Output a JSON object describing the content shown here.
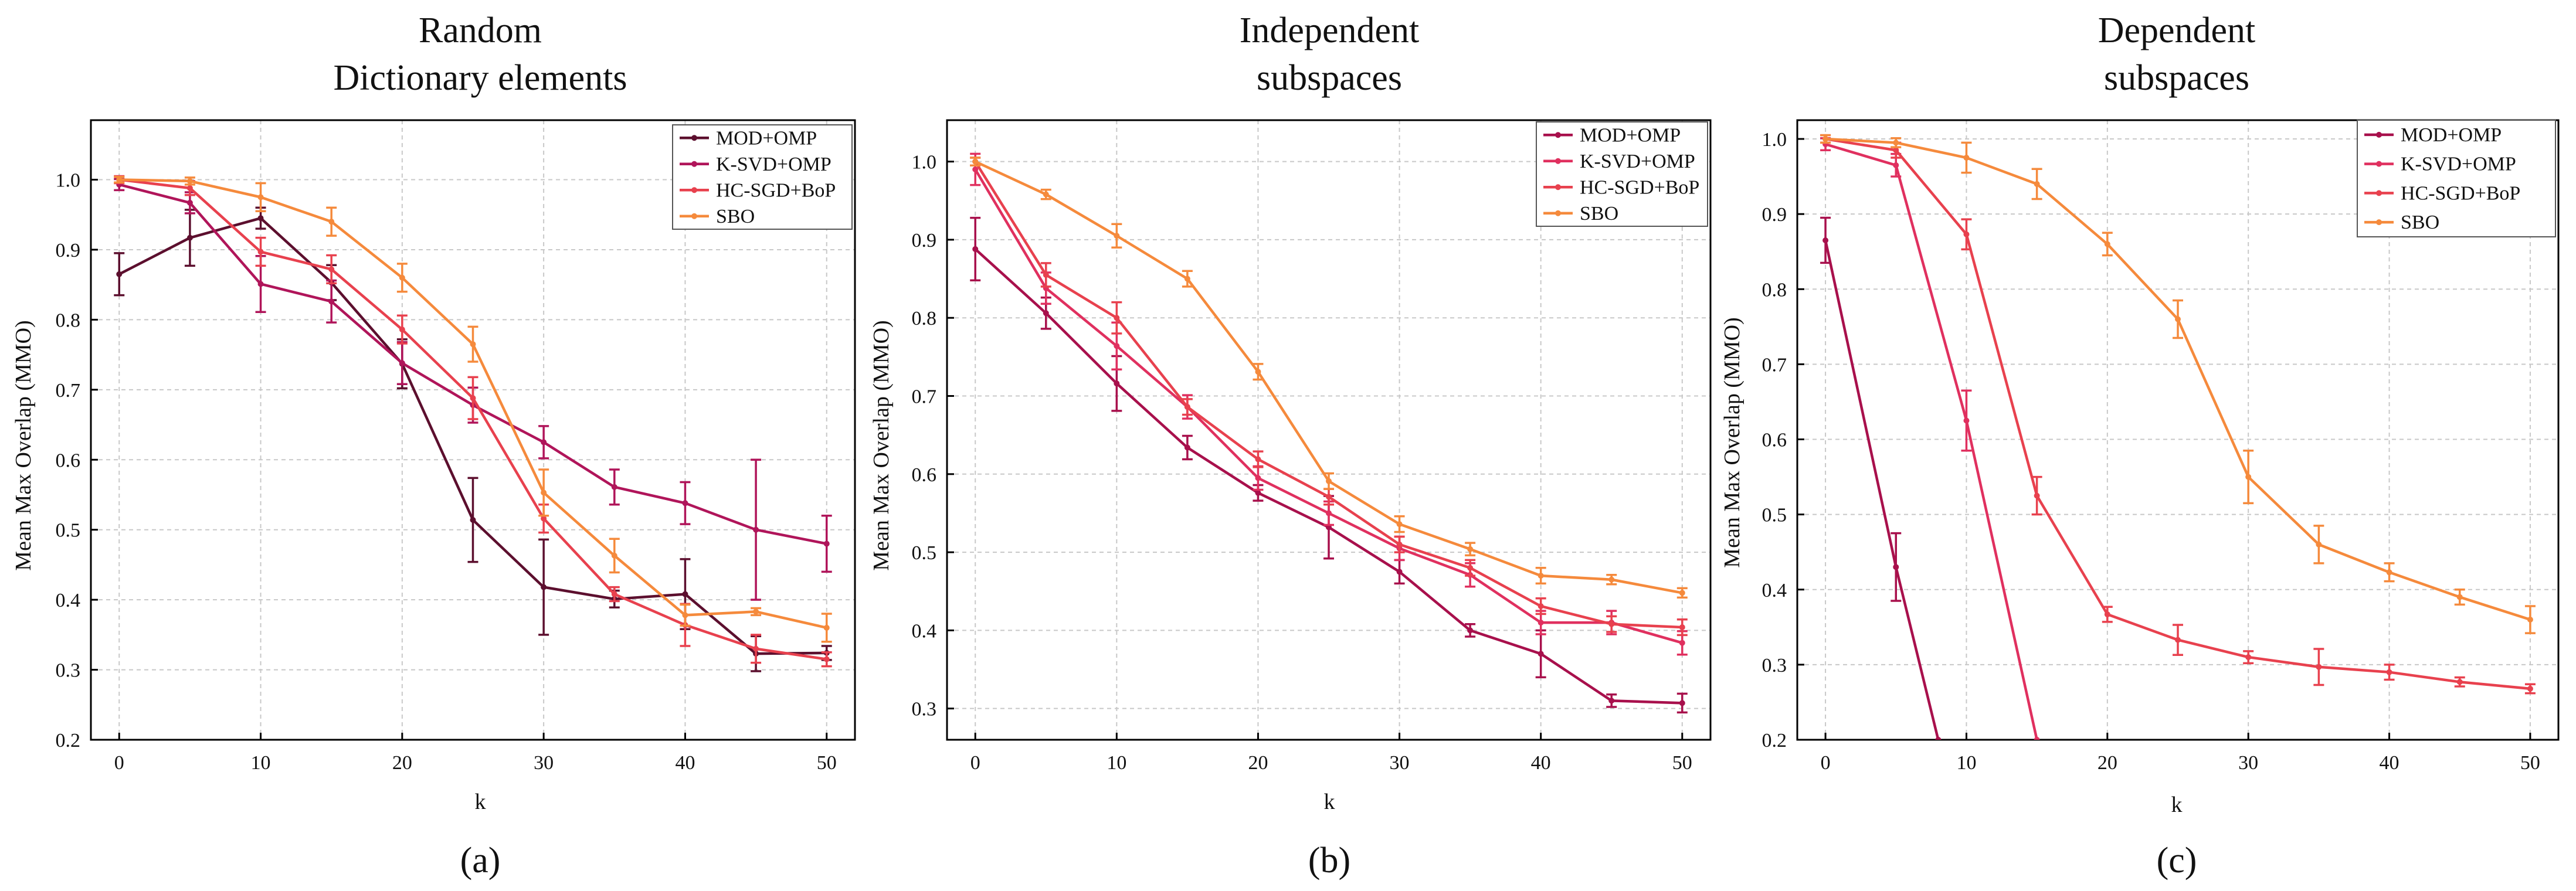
{
  "captions": [
    "(a)",
    "(b)",
    "(c)"
  ],
  "colors": {
    "MOD+OMP": "#5c0f2e",
    "K-SVD+OMP": "#b0155a",
    "HC-SGD+BoP": "#e8414e",
    "SBO": "#f58a3c",
    "MOD+OMP_b": "#a8104c",
    "K-SVD+OMP_b": "#e0305f"
  },
  "chart_data": [
    {
      "type": "line",
      "title": [
        "Random",
        "Dictionary elements"
      ],
      "xlabel": "k",
      "ylabel": "Mean Max Overlap (MMO)",
      "xlim": [
        -2,
        52
      ],
      "ylim": [
        0.2,
        1.085
      ],
      "xticks": [
        0,
        10,
        20,
        30,
        40,
        50
      ],
      "yticks": [
        0.2,
        0.3,
        0.4,
        0.5,
        0.6,
        0.7,
        0.8,
        0.9,
        1.0
      ],
      "ytick_labels": [
        "0.2",
        "0.3",
        "0.4",
        "0.5",
        "0.6",
        "0.7",
        "0.8",
        "0.9",
        "1.0"
      ],
      "grid": true,
      "legend": "top-right",
      "x": [
        0,
        5,
        10,
        15,
        20,
        25,
        30,
        35,
        40,
        45,
        50
      ],
      "series": [
        {
          "name": "MOD+OMP",
          "color_key": "MOD+OMP",
          "values": [
            0.865,
            0.917,
            0.945,
            0.853,
            0.737,
            0.514,
            0.418,
            0.401,
            0.408,
            0.323,
            0.324
          ],
          "errors": [
            0.03,
            0.04,
            0.015,
            0.025,
            0.035,
            0.06,
            0.068,
            0.012,
            0.05,
            0.025,
            0.01
          ]
        },
        {
          "name": "K-SVD+OMP",
          "color_key": "K-SVD+OMP",
          "values": [
            0.993,
            0.967,
            0.851,
            0.826,
            0.738,
            0.678,
            0.625,
            0.561,
            0.538,
            0.5,
            0.48
          ],
          "errors": [
            0.008,
            0.015,
            0.04,
            0.03,
            0.03,
            0.025,
            0.023,
            0.025,
            0.03,
            0.1,
            0.04
          ]
        },
        {
          "name": "HC-SGD+BoP",
          "color_key": "HC-SGD+BoP",
          "values": [
            1.0,
            0.988,
            0.897,
            0.872,
            0.786,
            0.688,
            0.516,
            0.408,
            0.364,
            0.33,
            0.315
          ],
          "errors": [
            0.005,
            0.01,
            0.02,
            0.02,
            0.02,
            0.03,
            0.02,
            0.01,
            0.03,
            0.02,
            0.01
          ]
        },
        {
          "name": "SBO",
          "color_key": "SBO",
          "values": [
            1.0,
            0.998,
            0.975,
            0.94,
            0.86,
            0.765,
            0.553,
            0.463,
            0.378,
            0.383,
            0.36
          ],
          "errors": [
            0.004,
            0.005,
            0.02,
            0.02,
            0.02,
            0.025,
            0.033,
            0.024,
            0.015,
            0.005,
            0.02
          ]
        }
      ]
    },
    {
      "type": "line",
      "title": [
        "Independent",
        "subspaces"
      ],
      "xlabel": "k",
      "ylabel": "Mean Max Overlap (MMO)",
      "xlim": [
        -2,
        52
      ],
      "ylim": [
        0.26,
        1.053
      ],
      "xticks": [
        0,
        10,
        20,
        30,
        40,
        50
      ],
      "yticks": [
        0.3,
        0.4,
        0.5,
        0.6,
        0.7,
        0.8,
        0.9,
        1.0
      ],
      "ytick_labels": [
        "0.3",
        "0.4",
        "0.5",
        "0.6",
        "0.7",
        "0.8",
        "0.9",
        "1.0"
      ],
      "grid": true,
      "legend": "top-right",
      "x": [
        0,
        5,
        10,
        15,
        20,
        25,
        30,
        35,
        40,
        45,
        50
      ],
      "series": [
        {
          "name": "MOD+OMP",
          "color_key": "MOD+OMP_b",
          "values": [
            0.888,
            0.806,
            0.716,
            0.634,
            0.576,
            0.532,
            0.475,
            0.4,
            0.37,
            0.31,
            0.307
          ],
          "errors": [
            0.04,
            0.02,
            0.035,
            0.015,
            0.01,
            0.04,
            0.015,
            0.008,
            0.03,
            0.008,
            0.012
          ]
        },
        {
          "name": "K-SVD+OMP",
          "color_key": "K-SVD+OMP_b",
          "values": [
            0.99,
            0.838,
            0.764,
            0.686,
            0.595,
            0.55,
            0.505,
            0.471,
            0.41,
            0.41,
            0.384
          ],
          "errors": [
            0.02,
            0.02,
            0.03,
            0.015,
            0.015,
            0.015,
            0.015,
            0.015,
            0.015,
            0.015,
            0.015
          ]
        },
        {
          "name": "HC-SGD+BoP",
          "color_key": "HC-SGD+BoP",
          "values": [
            1.0,
            0.855,
            0.8,
            0.686,
            0.619,
            0.571,
            0.51,
            0.48,
            0.431,
            0.408,
            0.404
          ],
          "errors": [
            0.005,
            0.015,
            0.02,
            0.01,
            0.01,
            0.01,
            0.01,
            0.01,
            0.01,
            0.01,
            0.01
          ]
        },
        {
          "name": "SBO",
          "color_key": "SBO",
          "values": [
            1.0,
            0.958,
            0.905,
            0.85,
            0.731,
            0.591,
            0.536,
            0.504,
            0.47,
            0.465,
            0.448
          ],
          "errors": [
            0.005,
            0.006,
            0.015,
            0.01,
            0.01,
            0.01,
            0.01,
            0.008,
            0.01,
            0.006,
            0.006
          ]
        }
      ]
    },
    {
      "type": "line",
      "title": [
        "Dependent",
        "subspaces"
      ],
      "xlabel": "k",
      "ylabel": "Mean Max Overlap (MMO)",
      "xlim": [
        -2,
        52
      ],
      "ylim": [
        0.2,
        1.025
      ],
      "xticks": [
        0,
        10,
        20,
        30,
        40,
        50
      ],
      "yticks": [
        0.2,
        0.3,
        0.4,
        0.5,
        0.6,
        0.7,
        0.8,
        0.9,
        1.0
      ],
      "ytick_labels": [
        "0.2",
        "0.3",
        "0.4",
        "0.5",
        "0.6",
        "0.7",
        "0.8",
        "0.9",
        "1.0"
      ],
      "grid": true,
      "legend": "top-right",
      "x": [
        0,
        5,
        10,
        15,
        20,
        25,
        30,
        35,
        40,
        45,
        50
      ],
      "series": [
        {
          "name": "MOD+OMP",
          "color_key": "MOD+OMP_b",
          "x": [
            0,
            5,
            8
          ],
          "values": [
            0.865,
            0.43,
            0.2
          ],
          "errors": [
            0.03,
            0.045,
            0
          ]
        },
        {
          "name": "K-SVD+OMP",
          "color_key": "K-SVD+OMP_b",
          "x": [
            0,
            5,
            10,
            15
          ],
          "values": [
            0.993,
            0.965,
            0.625,
            0.2
          ],
          "errors": [
            0.008,
            0.015,
            0.04,
            0
          ]
        },
        {
          "name": "HC-SGD+BoP",
          "color_key": "HC-SGD+BoP",
          "values": [
            1.0,
            0.985,
            0.873,
            0.525,
            0.367,
            0.333,
            0.31,
            0.297,
            0.29,
            0.277,
            0.268
          ],
          "errors": [
            0.005,
            0.01,
            0.02,
            0.025,
            0.01,
            0.02,
            0.008,
            0.024,
            0.01,
            0.006,
            0.006
          ]
        },
        {
          "name": "SBO",
          "color_key": "SBO",
          "values": [
            1.0,
            0.995,
            0.975,
            0.94,
            0.86,
            0.76,
            0.55,
            0.46,
            0.423,
            0.39,
            0.36
          ],
          "errors": [
            0.005,
            0.006,
            0.02,
            0.02,
            0.015,
            0.025,
            0.035,
            0.025,
            0.012,
            0.01,
            0.018
          ]
        }
      ]
    }
  ]
}
